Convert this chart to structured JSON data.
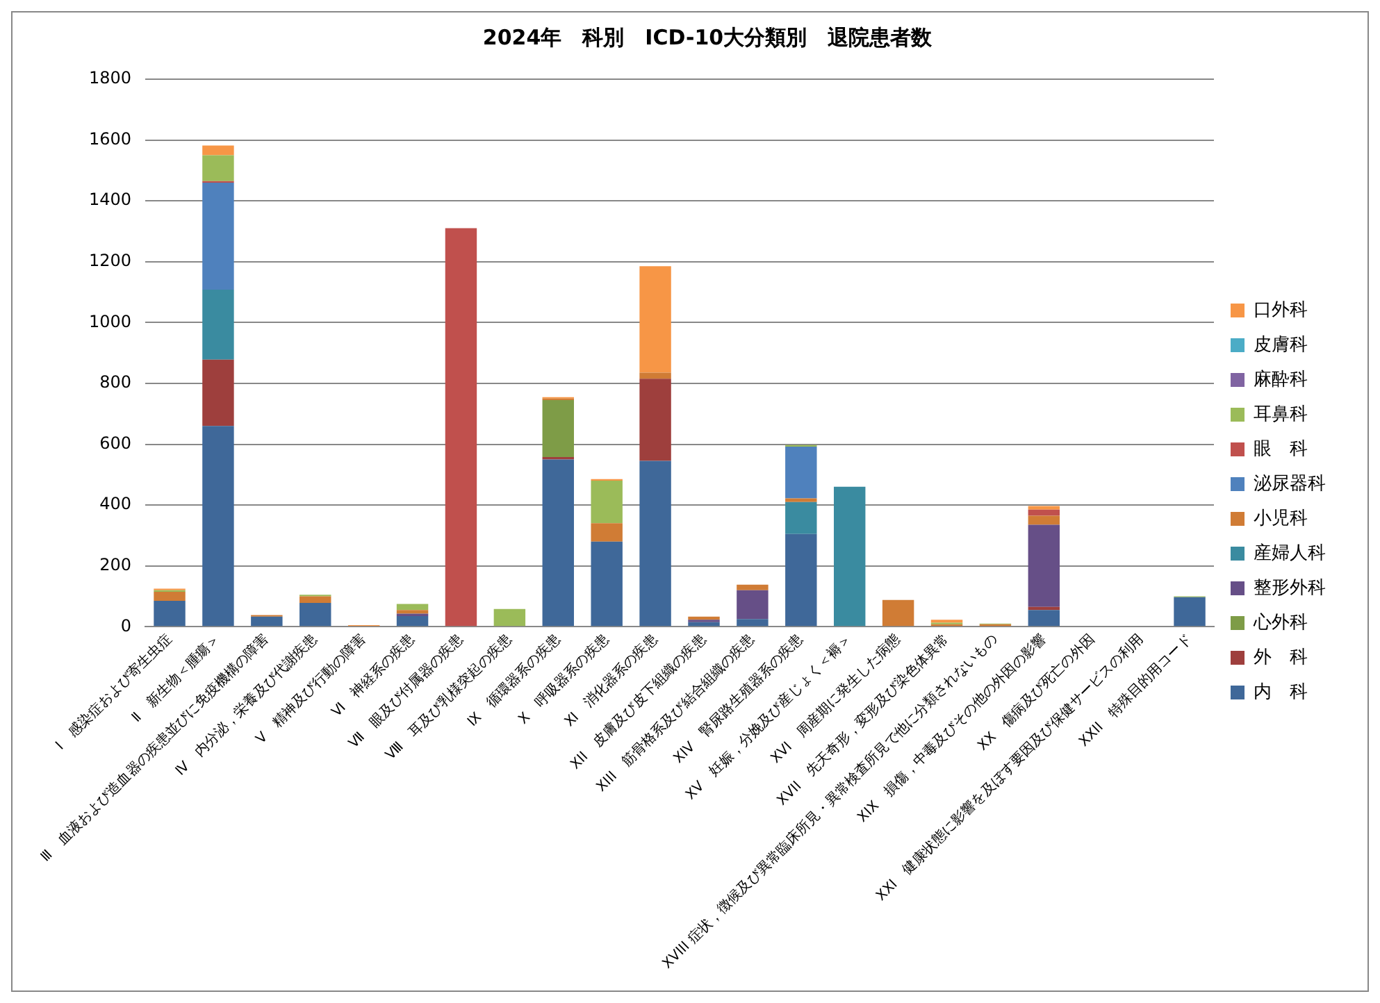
{
  "chart_data": {
    "type": "bar",
    "stacked": true,
    "title": "2024年　科別　ICD-10大分類別　退院患者数",
    "categories": [
      "Ⅰ　感染症および寄生虫症",
      "Ⅱ　新生物＜腫瘍＞",
      "Ⅲ　血液および造血器の疾患並びに免疫機構の障害",
      "Ⅳ　内分泌，栄養及び代謝疾患",
      "Ⅴ　精神及び行動の障害",
      "Ⅵ　神経系の疾患",
      "Ⅶ　眼及び付属器の疾患",
      "Ⅷ　耳及び乳様突起の疾患",
      "Ⅸ　循環器系の疾患",
      "Ⅹ　呼吸器系の疾患",
      "Ⅺ　消化器系の疾患",
      "XII　皮膚及び皮下組織の疾患",
      "XIII　筋骨格系及び結合組織の疾患",
      "XIV　腎尿路生殖器系の疾患",
      "XV　妊娠，分娩及び産じょく＜褥＞",
      "XVI　周産期に発生した病態",
      "XVII　先天奇形，変形及び染色体異常",
      "XVIII 症状，徴候及び異常臨床所見・異常検査所見で他に分類されないもの",
      "XIX　損傷，中毒及びその他の外因の影響",
      "XX　傷病及び死亡の外因",
      "XXI　健康状態に影響を及ぼす要因及び保健サービスの利用",
      "XXII　特殊目的用コード"
    ],
    "series": [
      {
        "name": "内　科",
        "color": "#3f6899",
        "values": [
          85,
          660,
          33,
          78,
          0,
          35,
          0,
          0,
          550,
          280,
          545,
          15,
          25,
          305,
          0,
          0,
          0,
          0,
          55,
          0,
          0,
          97
        ]
      },
      {
        "name": "外　科",
        "color": "#9e3f3d",
        "values": [
          0,
          218,
          0,
          0,
          0,
          0,
          0,
          0,
          8,
          0,
          270,
          0,
          0,
          0,
          0,
          0,
          0,
          0,
          10,
          0,
          0,
          0
        ]
      },
      {
        "name": "心外科",
        "color": "#7e9c47",
        "values": [
          0,
          0,
          0,
          0,
          0,
          0,
          0,
          0,
          187,
          0,
          0,
          0,
          0,
          0,
          0,
          0,
          0,
          0,
          0,
          0,
          0,
          0
        ]
      },
      {
        "name": "整形外科",
        "color": "#664f87",
        "values": [
          0,
          0,
          0,
          0,
          0,
          8,
          0,
          0,
          0,
          0,
          0,
          8,
          95,
          0,
          0,
          0,
          0,
          0,
          270,
          0,
          0,
          0
        ]
      },
      {
        "name": "産婦人科",
        "color": "#3a8ba0",
        "values": [
          0,
          230,
          0,
          0,
          0,
          0,
          0,
          0,
          0,
          0,
          0,
          0,
          0,
          105,
          460,
          0,
          0,
          0,
          0,
          0,
          0,
          0
        ]
      },
      {
        "name": "小児科",
        "color": "#d07c35",
        "values": [
          30,
          0,
          5,
          22,
          3,
          12,
          0,
          0,
          5,
          60,
          20,
          10,
          18,
          12,
          0,
          88,
          8,
          8,
          30,
          0,
          0,
          0
        ]
      },
      {
        "name": "泌尿器科",
        "color": "#4f81bd",
        "values": [
          0,
          352,
          0,
          0,
          0,
          0,
          0,
          0,
          0,
          0,
          0,
          0,
          0,
          170,
          0,
          0,
          0,
          0,
          0,
          0,
          0,
          0
        ]
      },
      {
        "name": "眼　科",
        "color": "#c0504d",
        "values": [
          0,
          5,
          0,
          0,
          0,
          0,
          1310,
          0,
          0,
          0,
          0,
          0,
          0,
          0,
          0,
          0,
          0,
          0,
          20,
          0,
          0,
          0
        ]
      },
      {
        "name": "耳鼻科",
        "color": "#9bbb59",
        "values": [
          5,
          85,
          0,
          5,
          0,
          20,
          0,
          58,
          0,
          140,
          0,
          0,
          0,
          5,
          0,
          0,
          5,
          2,
          0,
          0,
          0,
          3
        ]
      },
      {
        "name": "麻酔科",
        "color": "#8064a2",
        "values": [
          0,
          0,
          0,
          0,
          0,
          0,
          0,
          0,
          0,
          0,
          0,
          0,
          0,
          0,
          0,
          0,
          0,
          0,
          0,
          0,
          0,
          0
        ]
      },
      {
        "name": "皮膚科",
        "color": "#4bacc6",
        "values": [
          0,
          0,
          0,
          0,
          0,
          0,
          0,
          0,
          0,
          0,
          0,
          0,
          0,
          0,
          0,
          0,
          0,
          0,
          0,
          0,
          0,
          0
        ]
      },
      {
        "name": "口外科",
        "color": "#f79646",
        "values": [
          5,
          32,
          0,
          0,
          2,
          0,
          0,
          0,
          5,
          5,
          350,
          0,
          0,
          0,
          0,
          0,
          10,
          0,
          12,
          0,
          0,
          0
        ]
      }
    ],
    "ylim": [
      0,
      1800
    ],
    "yticks": [
      0,
      200,
      400,
      600,
      800,
      1000,
      1200,
      1400,
      1600,
      1800
    ],
    "grid": "y",
    "legend": "right"
  }
}
